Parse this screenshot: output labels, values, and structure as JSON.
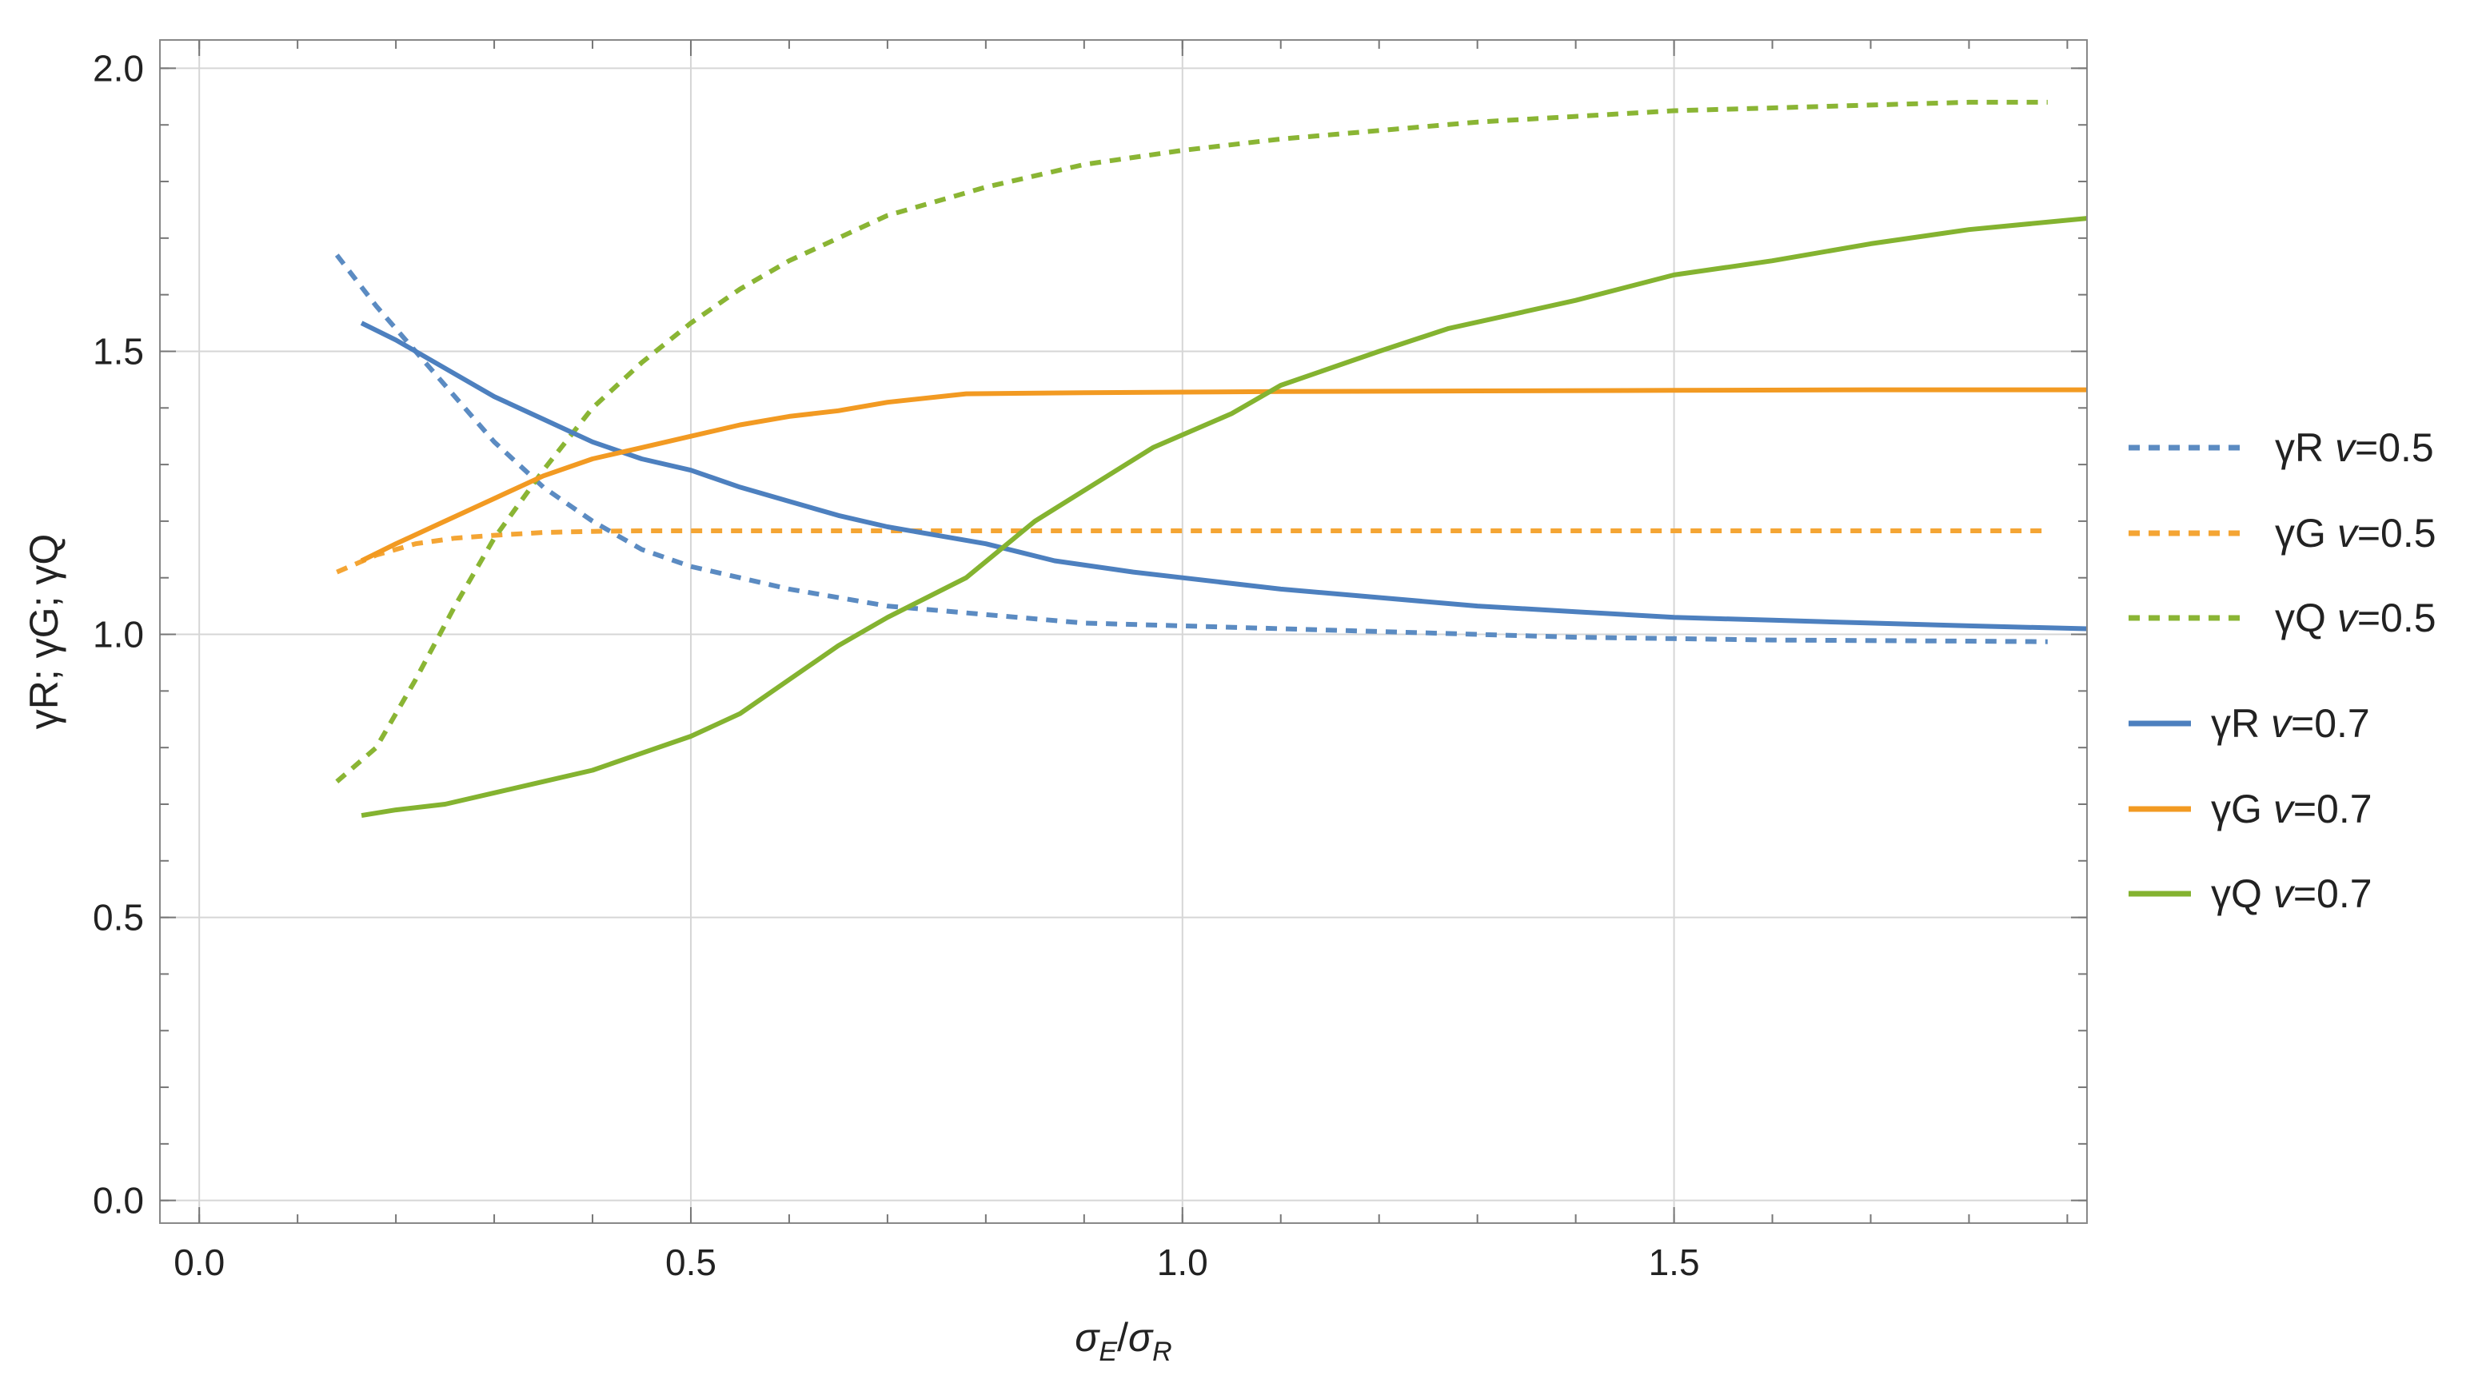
{
  "chart_data": {
    "type": "line",
    "title": "",
    "xlabel_parts": [
      "σ",
      "E",
      "/",
      "σ",
      "R"
    ],
    "ylabel": "γR; γG; γQ",
    "xlim": [
      -0.04,
      1.92
    ],
    "ylim": [
      -0.04,
      2.05
    ],
    "xticks": [
      0.0,
      0.5,
      1.0,
      1.5
    ],
    "xtick_labels": [
      "0.0",
      "0.5",
      "1.0",
      "1.5"
    ],
    "yticks": [
      0.0,
      0.5,
      1.0,
      1.5,
      2.0
    ],
    "ytick_labels": [
      "0.0",
      "0.5",
      "1.0",
      "1.5",
      "2.0"
    ],
    "grid": true,
    "legend_position": "right",
    "series": [
      {
        "name": "γR v=0.5",
        "label_main": "γR",
        "label_var": "v",
        "label_val": "=0.5",
        "color": "#5b8bc2",
        "dash": "dashed",
        "x": [
          0.14,
          0.18,
          0.22,
          0.26,
          0.3,
          0.35,
          0.4,
          0.45,
          0.5,
          0.55,
          0.6,
          0.7,
          0.8,
          0.9,
          1.0,
          1.2,
          1.4,
          1.6,
          1.8,
          1.88
        ],
        "y": [
          1.67,
          1.58,
          1.5,
          1.42,
          1.34,
          1.26,
          1.2,
          1.15,
          1.12,
          1.1,
          1.08,
          1.05,
          1.035,
          1.02,
          1.015,
          1.005,
          0.995,
          0.99,
          0.988,
          0.987
        ]
      },
      {
        "name": "γG v=0.5",
        "label_main": "γG",
        "label_var": "v",
        "label_val": "=0.5",
        "color": "#f4a534",
        "dash": "dashed",
        "x": [
          0.14,
          0.18,
          0.22,
          0.26,
          0.3,
          0.35,
          0.4,
          0.45,
          0.5,
          0.6,
          0.8,
          1.0,
          1.2,
          1.4,
          1.6,
          1.8,
          1.88
        ],
        "y": [
          1.11,
          1.14,
          1.16,
          1.17,
          1.175,
          1.18,
          1.182,
          1.183,
          1.183,
          1.183,
          1.183,
          1.183,
          1.183,
          1.183,
          1.183,
          1.183,
          1.183
        ]
      },
      {
        "name": "γQ v=0.5",
        "label_main": "γQ",
        "label_var": "v",
        "label_val": "=0.5",
        "color": "#8ab534",
        "dash": "dashed",
        "x": [
          0.14,
          0.18,
          0.22,
          0.26,
          0.3,
          0.35,
          0.4,
          0.45,
          0.5,
          0.55,
          0.6,
          0.65,
          0.7,
          0.8,
          0.9,
          1.0,
          1.1,
          1.2,
          1.3,
          1.4,
          1.5,
          1.6,
          1.7,
          1.8,
          1.88
        ],
        "y": [
          0.74,
          0.8,
          0.92,
          1.05,
          1.17,
          1.29,
          1.4,
          1.48,
          1.55,
          1.61,
          1.66,
          1.7,
          1.74,
          1.79,
          1.83,
          1.855,
          1.875,
          1.89,
          1.905,
          1.915,
          1.925,
          1.93,
          1.935,
          1.94,
          1.94
        ]
      },
      {
        "name": "γR v=0.7",
        "label_main": "γR",
        "label_var": "v",
        "label_val": "=0.7",
        "color": "#4d80bf",
        "dash": "solid",
        "x": [
          0.165,
          0.2,
          0.25,
          0.3,
          0.35,
          0.4,
          0.45,
          0.5,
          0.55,
          0.6,
          0.65,
          0.7,
          0.75,
          0.8,
          0.87,
          0.95,
          1.0,
          1.1,
          1.2,
          1.3,
          1.4,
          1.5,
          1.6,
          1.7,
          1.8,
          1.92
        ],
        "y": [
          1.55,
          1.52,
          1.47,
          1.42,
          1.38,
          1.34,
          1.31,
          1.29,
          1.26,
          1.235,
          1.21,
          1.19,
          1.175,
          1.16,
          1.13,
          1.11,
          1.1,
          1.08,
          1.065,
          1.05,
          1.04,
          1.03,
          1.025,
          1.02,
          1.015,
          1.01
        ]
      },
      {
        "name": "γG v=0.7",
        "label_main": "γG",
        "label_var": "v",
        "label_val": "=0.7",
        "color": "#f29a22",
        "dash": "solid",
        "x": [
          0.165,
          0.2,
          0.25,
          0.3,
          0.35,
          0.4,
          0.45,
          0.5,
          0.55,
          0.6,
          0.65,
          0.7,
          0.78,
          0.9,
          1.0,
          1.1,
          1.3,
          1.5,
          1.7,
          1.92
        ],
        "y": [
          1.13,
          1.16,
          1.2,
          1.24,
          1.28,
          1.31,
          1.33,
          1.35,
          1.37,
          1.385,
          1.395,
          1.41,
          1.425,
          1.427,
          1.428,
          1.429,
          1.43,
          1.431,
          1.432,
          1.432
        ]
      },
      {
        "name": "γQ v=0.7",
        "label_main": "γQ",
        "label_var": "v",
        "label_val": "=0.7",
        "color": "#84b330",
        "dash": "solid",
        "x": [
          0.165,
          0.2,
          0.25,
          0.3,
          0.35,
          0.4,
          0.45,
          0.5,
          0.55,
          0.6,
          0.65,
          0.7,
          0.78,
          0.85,
          0.97,
          1.05,
          1.1,
          1.2,
          1.27,
          1.4,
          1.5,
          1.6,
          1.7,
          1.8,
          1.92
        ],
        "y": [
          0.68,
          0.69,
          0.7,
          0.72,
          0.74,
          0.76,
          0.79,
          0.82,
          0.86,
          0.92,
          0.98,
          1.03,
          1.1,
          1.2,
          1.33,
          1.39,
          1.44,
          1.5,
          1.54,
          1.59,
          1.635,
          1.66,
          1.69,
          1.715,
          1.735
        ]
      }
    ]
  }
}
